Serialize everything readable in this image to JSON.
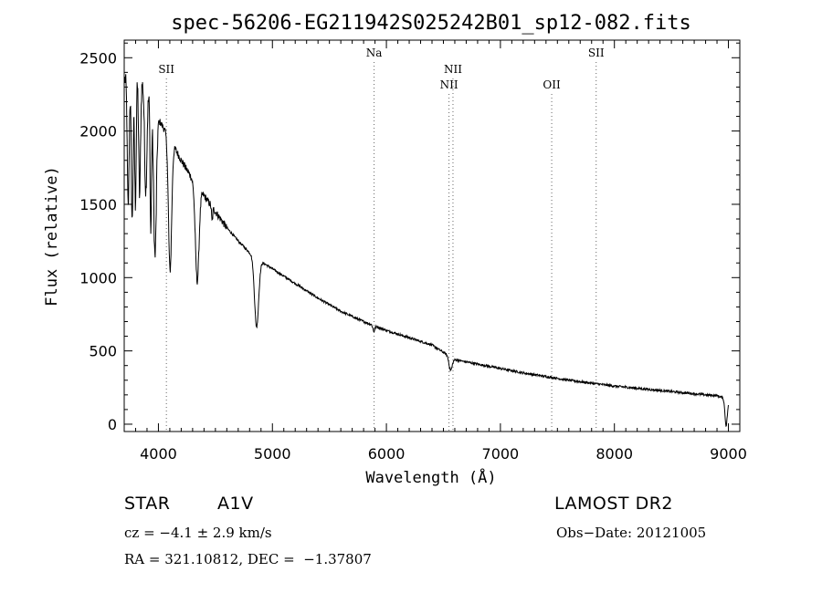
{
  "chart_data": {
    "type": "line",
    "title": "spec-56206-EG211942S025242B01_sp12-082.fits",
    "xlabel": "Wavelength (Å)",
    "ylabel": "Flux (relative)",
    "xlim": [
      3700,
      9100
    ],
    "ylim": [
      -50,
      2620
    ],
    "xticks": [
      4000,
      5000,
      6000,
      7000,
      8000,
      9000
    ],
    "yticks": [
      0,
      500,
      1000,
      1500,
      2000,
      2500
    ],
    "grid": false,
    "legend": "none",
    "spectral_lines": [
      {
        "name": "SII",
        "wavelength": 4070,
        "label_row": 1
      },
      {
        "name": "Na",
        "wavelength": 5892,
        "label_row": 0
      },
      {
        "name": "NII",
        "wavelength": 6549,
        "label_row": 2
      },
      {
        "name": "NII",
        "wavelength": 6584,
        "label_row": 1
      },
      {
        "name": "OII",
        "wavelength": 7450,
        "label_row": 2
      },
      {
        "name": "SII",
        "wavelength": 7840,
        "label_row": 0
      }
    ],
    "continuum": [
      [
        3700,
        2350
      ],
      [
        3800,
        2400
      ],
      [
        3900,
        2280
      ],
      [
        4000,
        2080
      ],
      [
        4100,
        1950
      ],
      [
        4200,
        1800
      ],
      [
        4300,
        1670
      ],
      [
        4400,
        1560
      ],
      [
        4500,
        1450
      ],
      [
        4600,
        1340
      ],
      [
        4700,
        1250
      ],
      [
        4800,
        1170
      ],
      [
        4900,
        1110
      ],
      [
        5000,
        1060
      ],
      [
        5200,
        960
      ],
      [
        5400,
        860
      ],
      [
        5600,
        770
      ],
      [
        5800,
        700
      ],
      [
        6000,
        640
      ],
      [
        6200,
        590
      ],
      [
        6400,
        540
      ],
      [
        6600,
        440
      ],
      [
        6800,
        410
      ],
      [
        7000,
        380
      ],
      [
        7200,
        350
      ],
      [
        7400,
        325
      ],
      [
        7600,
        300
      ],
      [
        7800,
        280
      ],
      [
        8000,
        260
      ],
      [
        8200,
        245
      ],
      [
        8400,
        230
      ],
      [
        8600,
        215
      ],
      [
        8800,
        200
      ],
      [
        8900,
        195
      ],
      [
        8950,
        180
      ],
      [
        9000,
        150
      ]
    ],
    "absorption_features": [
      {
        "center": 3735,
        "depth": 900,
        "width": 8
      },
      {
        "center": 3770,
        "depth": 1000,
        "width": 8
      },
      {
        "center": 3798,
        "depth": 900,
        "width": 7
      },
      {
        "center": 3835,
        "depth": 800,
        "width": 8
      },
      {
        "center": 3889,
        "depth": 700,
        "width": 10
      },
      {
        "center": 3933,
        "depth": 900,
        "width": 6
      },
      {
        "center": 3970,
        "depth": 1000,
        "width": 12
      },
      {
        "center": 4102,
        "depth": 900,
        "width": 14
      },
      {
        "center": 4340,
        "depth": 650,
        "width": 16
      },
      {
        "center": 4471,
        "depth": 100,
        "width": 5
      },
      {
        "center": 4861,
        "depth": 470,
        "width": 18
      },
      {
        "center": 5890,
        "depth": 40,
        "width": 8
      },
      {
        "center": 6563,
        "depth": 90,
        "width": 14
      },
      {
        "center": 8980,
        "depth": 170,
        "width": 10
      }
    ]
  },
  "info": {
    "object_type": "STAR",
    "subclass": "A1V",
    "survey": "LAMOST DR2",
    "cz": "cz = −4.1 ± 2.9 km/s",
    "obs_date": "Obs−Date: 20121005",
    "coords": "RA = 321.10812, DEC =  −1.37807"
  }
}
